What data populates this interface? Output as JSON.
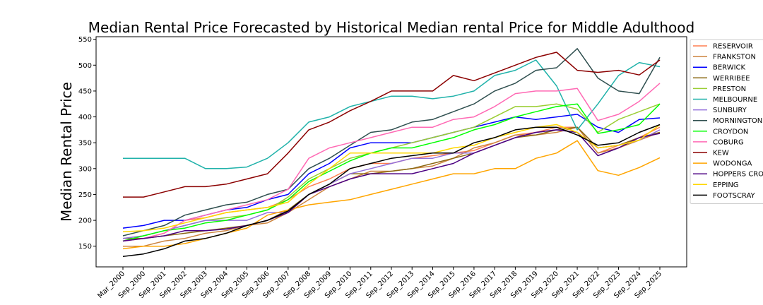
{
  "chart_data": {
    "type": "line",
    "title": "Median Rental Price Forecasted by Historical Median rental Price for Middle Adulthood",
    "xlabel": "",
    "ylabel": "Median Rental Price",
    "ylim": [
      110,
      555
    ],
    "yticks": [
      150,
      200,
      250,
      300,
      350,
      400,
      450,
      500,
      550
    ],
    "grid": false,
    "legend_position": "right",
    "categories": [
      "Mar_2000",
      "Sep_2000",
      "Sep_2001",
      "Sep_2002",
      "Sep_2003",
      "Sep_2004",
      "Sep_2005",
      "Sep_2006",
      "Sep_2007",
      "Sep_2008",
      "Sep_2009",
      "Sep_2010",
      "Sep_2011",
      "Sep_2012",
      "Sep_2013",
      "Sep_2014",
      "Sep_2015",
      "Sep_2016",
      "Sep_2017",
      "Sep_2018",
      "Sep_2019",
      "Sep_2020",
      "Sep_2021",
      "Sep_2022",
      "Sep_2023",
      "Sep_2024",
      "Sep_2025"
    ],
    "series": [
      {
        "name": "RESERVOIR",
        "color": "#ff7f50",
        "values": [
          160,
          165,
          175,
          200,
          205,
          215,
          220,
          225,
          240,
          265,
          280,
          300,
          310,
          310,
          320,
          325,
          330,
          335,
          350,
          365,
          370,
          380,
          380,
          330,
          345,
          360,
          380
        ]
      },
      {
        "name": "FRANKSTON",
        "color": "#cd853f",
        "values": [
          150,
          150,
          160,
          165,
          175,
          180,
          190,
          195,
          215,
          240,
          265,
          280,
          295,
          295,
          300,
          305,
          320,
          340,
          350,
          365,
          365,
          370,
          380,
          330,
          340,
          355,
          370
        ]
      },
      {
        "name": "BERWICK",
        "color": "#0000ff",
        "values": [
          185,
          190,
          200,
          200,
          210,
          220,
          225,
          240,
          250,
          290,
          310,
          340,
          350,
          350,
          350,
          360,
          370,
          380,
          390,
          400,
          395,
          400,
          405,
          380,
          370,
          395,
          398
        ]
      },
      {
        "name": "WERRIBEE",
        "color": "#8b6914",
        "values": [
          165,
          165,
          170,
          175,
          180,
          185,
          190,
          200,
          220,
          250,
          270,
          290,
          290,
          295,
          300,
          310,
          320,
          330,
          345,
          360,
          365,
          375,
          380,
          340,
          345,
          360,
          370
        ]
      },
      {
        "name": "PRESTON",
        "color": "#9acd32",
        "values": [
          165,
          170,
          180,
          190,
          200,
          205,
          210,
          220,
          245,
          280,
          300,
          320,
          330,
          340,
          350,
          360,
          370,
          380,
          400,
          420,
          420,
          425,
          415,
          370,
          395,
          410,
          425
        ]
      },
      {
        "name": "MELBOURNE",
        "color": "#20b2aa",
        "values": [
          320,
          320,
          320,
          320,
          300,
          300,
          303,
          320,
          350,
          390,
          400,
          420,
          430,
          440,
          440,
          435,
          440,
          450,
          480,
          490,
          510,
          460,
          375,
          425,
          480,
          505,
          497
        ]
      },
      {
        "name": "SUNBURY",
        "color": "#9370db",
        "values": [
          165,
          170,
          180,
          190,
          200,
          200,
          200,
          215,
          215,
          250,
          270,
          290,
          300,
          310,
          320,
          320,
          330,
          330,
          345,
          360,
          370,
          375,
          370,
          340,
          345,
          355,
          375
        ]
      },
      {
        "name": "MORNINGTON",
        "color": "#2f4f4f",
        "values": [
          170,
          180,
          190,
          210,
          220,
          230,
          235,
          250,
          260,
          300,
          320,
          345,
          370,
          375,
          390,
          395,
          410,
          425,
          450,
          465,
          490,
          495,
          532,
          475,
          450,
          445,
          515
        ]
      },
      {
        "name": "CROYDON",
        "color": "#00ff00",
        "values": [
          160,
          170,
          180,
          185,
          195,
          200,
          210,
          220,
          240,
          275,
          295,
          315,
          330,
          340,
          340,
          350,
          360,
          375,
          385,
          400,
          410,
          420,
          425,
          368,
          375,
          385,
          425
        ]
      },
      {
        "name": "COBURG",
        "color": "#ff69b4",
        "values": [
          160,
          165,
          175,
          200,
          210,
          220,
          230,
          240,
          260,
          320,
          340,
          350,
          360,
          370,
          380,
          380,
          395,
          400,
          420,
          445,
          450,
          450,
          455,
          393,
          405,
          430,
          465
        ]
      },
      {
        "name": "KEW",
        "color": "#8b0000",
        "values": [
          245,
          245,
          255,
          265,
          265,
          270,
          280,
          290,
          330,
          375,
          390,
          412,
          430,
          450,
          450,
          450,
          480,
          470,
          485,
          500,
          515,
          525,
          490,
          486,
          490,
          481,
          510
        ]
      },
      {
        "name": "WODONGA",
        "color": "#ffa500",
        "values": [
          145,
          150,
          150,
          155,
          165,
          175,
          185,
          210,
          220,
          230,
          235,
          240,
          250,
          260,
          270,
          280,
          290,
          290,
          300,
          300,
          320,
          330,
          354,
          296,
          287,
          302,
          321
        ]
      },
      {
        "name": "HOPPERS CROSSING",
        "color": "#4b0082",
        "values": [
          160,
          165,
          170,
          180,
          180,
          183,
          190,
          200,
          215,
          250,
          265,
          280,
          290,
          290,
          290,
          300,
          310,
          330,
          345,
          360,
          370,
          375,
          370,
          325,
          340,
          360,
          368
        ]
      },
      {
        "name": "EPPING",
        "color": "#ffd700",
        "values": [
          178,
          180,
          185,
          195,
          205,
          215,
          220,
          225,
          235,
          270,
          300,
          330,
          330,
          330,
          330,
          330,
          340,
          345,
          360,
          370,
          380,
          385,
          370,
          340,
          345,
          355,
          385
        ]
      },
      {
        "name": "FOOTSCRAY",
        "color": "#000000",
        "values": [
          130,
          135,
          145,
          160,
          165,
          175,
          190,
          200,
          218,
          250,
          270,
          300,
          310,
          320,
          325,
          330,
          330,
          350,
          360,
          375,
          380,
          380,
          365,
          345,
          350,
          370,
          385
        ]
      }
    ]
  }
}
